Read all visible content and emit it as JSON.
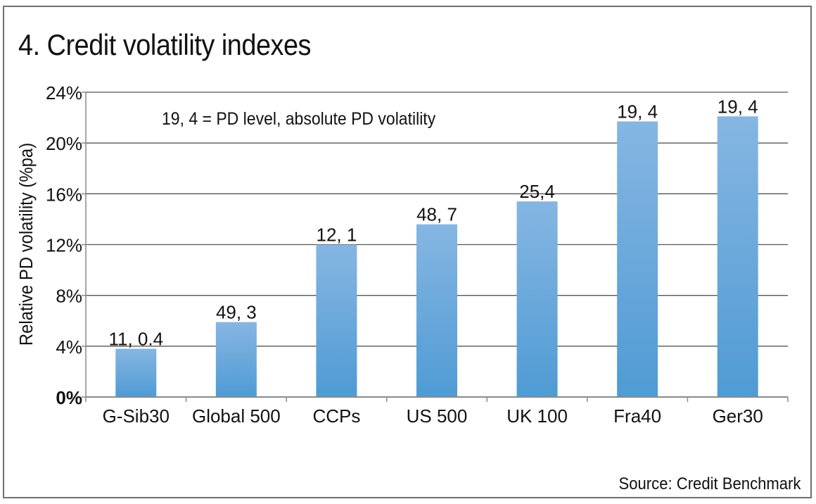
{
  "chart_data": {
    "type": "bar",
    "title": "4. Credit volatility indexes",
    "xlabel": "",
    "ylabel": "Relative PD volatility (%pa)",
    "ylim": [
      0,
      24
    ],
    "yticks": [
      0,
      4,
      8,
      12,
      16,
      20,
      24
    ],
    "ytick_labels": [
      "0%",
      "4%",
      "8%",
      "12%",
      "16%",
      "20%",
      "24%"
    ],
    "grid": true,
    "legend": null,
    "categories": [
      "G-Sib30",
      "Global 500",
      "CCPs",
      "US 500",
      "UK 100",
      "Fra40",
      "Ger30"
    ],
    "values": [
      3.8,
      5.9,
      12.0,
      13.6,
      15.4,
      21.7,
      22.1
    ],
    "data_labels": [
      "11, 0.4",
      "49, 3",
      "12, 1",
      "48, 7",
      "25,4",
      "19, 4",
      "19, 4"
    ],
    "annotation": "19, 4 = PD level, absolute PD volatility",
    "source": "Source: Credit Benchmark",
    "colors": {
      "bar_top": "#86b6e2",
      "bar_bottom": "#4f9bd4",
      "grid": "#555555",
      "axis": "#8a8a8a"
    }
  }
}
